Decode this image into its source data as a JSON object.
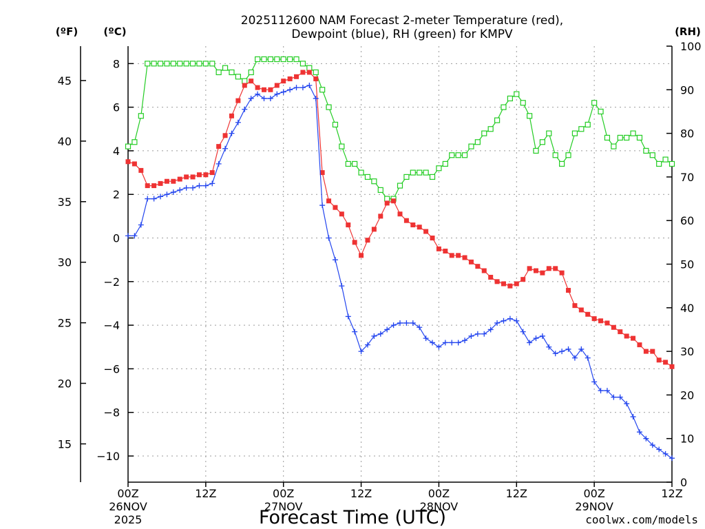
{
  "title_line1": "2025112600 NAM Forecast 2-meter Temperature (red),",
  "title_line2": "Dewpoint (blue), RH (green) for KMPV",
  "unit_f": "(ºF)",
  "unit_c": "(ºC)",
  "unit_rh": "(RH)",
  "xlabel": "Forecast Time (UTC)",
  "credit": "coolwx.com/models",
  "colors": {
    "temperature": "#ee3333",
    "dewpoint": "#2244ee",
    "rh": "#22cc22",
    "grid": "#999999",
    "credit": "#cc3333"
  },
  "chart_data": {
    "type": "line",
    "title": "2025112600 NAM Forecast 2-meter Temperature (red), Dewpoint (blue), RH (green) for KMPV",
    "xlabel": "Forecast Time (UTC)",
    "x_unit": "forecast hour from 2025-11-26 00Z",
    "xlim": [
      0,
      84
    ],
    "x_ticks": [
      {
        "x": 0,
        "l1": "00Z",
        "l2": "26NOV",
        "l3": "2025"
      },
      {
        "x": 12,
        "l1": "12Z",
        "l2": "",
        "l3": ""
      },
      {
        "x": 24,
        "l1": "00Z",
        "l2": "27NOV",
        "l3": ""
      },
      {
        "x": 36,
        "l1": "12Z",
        "l2": "",
        "l3": ""
      },
      {
        "x": 48,
        "l1": "00Z",
        "l2": "28NOV",
        "l3": ""
      },
      {
        "x": 60,
        "l1": "12Z",
        "l2": "",
        "l3": ""
      },
      {
        "x": 72,
        "l1": "00Z",
        "l2": "29NOV",
        "l3": ""
      },
      {
        "x": 84,
        "l1": "12Z",
        "l2": "",
        "l3": ""
      }
    ],
    "y_left_c": {
      "unit": "°C",
      "ticks": [
        -10,
        -8,
        -6,
        -4,
        -2,
        0,
        2,
        4,
        6,
        8
      ]
    },
    "y_left_f": {
      "unit": "°F",
      "ticks": [
        15,
        20,
        25,
        30,
        35,
        40,
        45
      ]
    },
    "y_right_rh": {
      "unit": "%",
      "ticks": [
        0,
        10,
        20,
        30,
        40,
        50,
        60,
        70,
        80,
        90,
        100
      ]
    },
    "ylim_c": [
      -11.2,
      8.8
    ],
    "grid": true,
    "series": [
      {
        "name": "Temperature (°C)",
        "axis": "c",
        "marker": "filled-square",
        "points": [
          [
            0,
            3.5
          ],
          [
            1,
            3.4
          ],
          [
            2,
            3.1
          ],
          [
            3,
            2.4
          ],
          [
            4,
            2.4
          ],
          [
            5,
            2.5
          ],
          [
            6,
            2.6
          ],
          [
            7,
            2.6
          ],
          [
            8,
            2.7
          ],
          [
            9,
            2.8
          ],
          [
            10,
            2.8
          ],
          [
            11,
            2.9
          ],
          [
            12,
            2.9
          ],
          [
            13,
            3.0
          ],
          [
            14,
            4.2
          ],
          [
            15,
            4.7
          ],
          [
            16,
            5.6
          ],
          [
            17,
            6.3
          ],
          [
            18,
            7.0
          ],
          [
            19,
            7.2
          ],
          [
            20,
            6.9
          ],
          [
            21,
            6.8
          ],
          [
            22,
            6.8
          ],
          [
            23,
            7.0
          ],
          [
            24,
            7.2
          ],
          [
            25,
            7.3
          ],
          [
            26,
            7.4
          ],
          [
            27,
            7.6
          ],
          [
            28,
            7.6
          ],
          [
            29,
            7.3
          ],
          [
            30,
            3.0
          ],
          [
            31,
            1.7
          ],
          [
            32,
            1.4
          ],
          [
            33,
            1.1
          ],
          [
            34,
            0.6
          ],
          [
            35,
            -0.2
          ],
          [
            36,
            -0.8
          ],
          [
            37,
            -0.1
          ],
          [
            38,
            0.4
          ],
          [
            39,
            1.0
          ],
          [
            40,
            1.6
          ],
          [
            41,
            1.7
          ],
          [
            42,
            1.1
          ],
          [
            43,
            0.8
          ],
          [
            44,
            0.6
          ],
          [
            45,
            0.5
          ],
          [
            46,
            0.3
          ],
          [
            47,
            0.0
          ],
          [
            48,
            -0.5
          ],
          [
            49,
            -0.6
          ],
          [
            50,
            -0.8
          ],
          [
            51,
            -0.8
          ],
          [
            52,
            -0.9
          ],
          [
            53,
            -1.1
          ],
          [
            54,
            -1.3
          ],
          [
            55,
            -1.5
          ],
          [
            56,
            -1.8
          ],
          [
            57,
            -2.0
          ],
          [
            58,
            -2.1
          ],
          [
            59,
            -2.2
          ],
          [
            60,
            -2.1
          ],
          [
            61,
            -1.9
          ],
          [
            62,
            -1.4
          ],
          [
            63,
            -1.5
          ],
          [
            64,
            -1.6
          ],
          [
            65,
            -1.4
          ],
          [
            66,
            -1.4
          ],
          [
            67,
            -1.6
          ],
          [
            68,
            -2.4
          ],
          [
            69,
            -3.1
          ],
          [
            70,
            -3.3
          ],
          [
            71,
            -3.5
          ],
          [
            72,
            -3.7
          ],
          [
            73,
            -3.8
          ],
          [
            74,
            -3.9
          ],
          [
            75,
            -4.1
          ],
          [
            76,
            -4.3
          ],
          [
            77,
            -4.5
          ],
          [
            78,
            -4.6
          ],
          [
            79,
            -4.9
          ],
          [
            80,
            -5.2
          ],
          [
            81,
            -5.2
          ],
          [
            82,
            -5.6
          ],
          [
            83,
            -5.7
          ],
          [
            84,
            -5.9
          ]
        ]
      },
      {
        "name": "Dewpoint (°C)",
        "axis": "c",
        "marker": "plus",
        "points": [
          [
            0,
            0.1
          ],
          [
            1,
            0.1
          ],
          [
            2,
            0.6
          ],
          [
            3,
            1.8
          ],
          [
            4,
            1.8
          ],
          [
            5,
            1.9
          ],
          [
            6,
            2.0
          ],
          [
            7,
            2.1
          ],
          [
            8,
            2.2
          ],
          [
            9,
            2.3
          ],
          [
            10,
            2.3
          ],
          [
            11,
            2.4
          ],
          [
            12,
            2.4
          ],
          [
            13,
            2.5
          ],
          [
            14,
            3.4
          ],
          [
            15,
            4.1
          ],
          [
            16,
            4.8
          ],
          [
            17,
            5.3
          ],
          [
            18,
            5.9
          ],
          [
            19,
            6.4
          ],
          [
            20,
            6.6
          ],
          [
            21,
            6.4
          ],
          [
            22,
            6.4
          ],
          [
            23,
            6.6
          ],
          [
            24,
            6.7
          ],
          [
            25,
            6.8
          ],
          [
            26,
            6.9
          ],
          [
            27,
            6.9
          ],
          [
            28,
            7.0
          ],
          [
            29,
            6.4
          ],
          [
            30,
            1.5
          ],
          [
            31,
            0.0
          ],
          [
            32,
            -1.0
          ],
          [
            33,
            -2.2
          ],
          [
            34,
            -3.6
          ],
          [
            35,
            -4.3
          ],
          [
            36,
            -5.2
          ],
          [
            37,
            -4.9
          ],
          [
            38,
            -4.5
          ],
          [
            39,
            -4.4
          ],
          [
            40,
            -4.2
          ],
          [
            41,
            -4.0
          ],
          [
            42,
            -3.9
          ],
          [
            43,
            -3.9
          ],
          [
            44,
            -3.9
          ],
          [
            45,
            -4.1
          ],
          [
            46,
            -4.6
          ],
          [
            47,
            -4.8
          ],
          [
            48,
            -5.0
          ],
          [
            49,
            -4.8
          ],
          [
            50,
            -4.8
          ],
          [
            51,
            -4.8
          ],
          [
            52,
            -4.7
          ],
          [
            53,
            -4.5
          ],
          [
            54,
            -4.4
          ],
          [
            55,
            -4.4
          ],
          [
            56,
            -4.2
          ],
          [
            57,
            -3.9
          ],
          [
            58,
            -3.8
          ],
          [
            59,
            -3.7
          ],
          [
            60,
            -3.8
          ],
          [
            61,
            -4.3
          ],
          [
            62,
            -4.8
          ],
          [
            63,
            -4.6
          ],
          [
            64,
            -4.5
          ],
          [
            65,
            -5.0
          ],
          [
            66,
            -5.3
          ],
          [
            67,
            -5.2
          ],
          [
            68,
            -5.1
          ],
          [
            69,
            -5.5
          ],
          [
            70,
            -5.1
          ],
          [
            71,
            -5.5
          ],
          [
            72,
            -6.6
          ],
          [
            73,
            -7.0
          ],
          [
            74,
            -7.0
          ],
          [
            75,
            -7.3
          ],
          [
            76,
            -7.3
          ],
          [
            77,
            -7.6
          ],
          [
            78,
            -8.2
          ],
          [
            79,
            -8.9
          ],
          [
            80,
            -9.2
          ],
          [
            81,
            -9.5
          ],
          [
            82,
            -9.7
          ],
          [
            83,
            -9.9
          ],
          [
            84,
            -10.1
          ]
        ]
      },
      {
        "name": "RH (%)",
        "axis": "rh",
        "marker": "open-square",
        "points": [
          [
            0,
            77
          ],
          [
            1,
            78
          ],
          [
            2,
            84
          ],
          [
            3,
            96
          ],
          [
            4,
            96
          ],
          [
            5,
            96
          ],
          [
            6,
            96
          ],
          [
            7,
            96
          ],
          [
            8,
            96
          ],
          [
            9,
            96
          ],
          [
            10,
            96
          ],
          [
            11,
            96
          ],
          [
            12,
            96
          ],
          [
            13,
            96
          ],
          [
            14,
            94
          ],
          [
            15,
            95
          ],
          [
            16,
            94
          ],
          [
            17,
            93
          ],
          [
            18,
            92
          ],
          [
            19,
            94
          ],
          [
            20,
            97
          ],
          [
            21,
            97
          ],
          [
            22,
            97
          ],
          [
            23,
            97
          ],
          [
            24,
            97
          ],
          [
            25,
            97
          ],
          [
            26,
            97
          ],
          [
            27,
            96
          ],
          [
            28,
            95
          ],
          [
            29,
            94
          ],
          [
            30,
            90
          ],
          [
            31,
            86
          ],
          [
            32,
            82
          ],
          [
            33,
            77
          ],
          [
            34,
            73
          ],
          [
            35,
            73
          ],
          [
            36,
            71
          ],
          [
            37,
            70
          ],
          [
            38,
            69
          ],
          [
            39,
            67
          ],
          [
            40,
            65
          ],
          [
            41,
            65
          ],
          [
            42,
            68
          ],
          [
            43,
            70
          ],
          [
            44,
            71
          ],
          [
            45,
            71
          ],
          [
            46,
            71
          ],
          [
            47,
            70
          ],
          [
            48,
            72
          ],
          [
            49,
            73
          ],
          [
            50,
            75
          ],
          [
            51,
            75
          ],
          [
            52,
            75
          ],
          [
            53,
            77
          ],
          [
            54,
            78
          ],
          [
            55,
            80
          ],
          [
            56,
            81
          ],
          [
            57,
            83
          ],
          [
            58,
            86
          ],
          [
            59,
            88
          ],
          [
            60,
            89
          ],
          [
            61,
            87
          ],
          [
            62,
            84
          ],
          [
            63,
            76
          ],
          [
            64,
            78
          ],
          [
            65,
            80
          ],
          [
            66,
            75
          ],
          [
            67,
            73
          ],
          [
            68,
            75
          ],
          [
            69,
            80
          ],
          [
            70,
            81
          ],
          [
            71,
            82
          ],
          [
            72,
            87
          ],
          [
            73,
            85
          ],
          [
            74,
            79
          ],
          [
            75,
            77
          ],
          [
            76,
            79
          ],
          [
            77,
            79
          ],
          [
            78,
            80
          ],
          [
            79,
            79
          ],
          [
            80,
            76
          ],
          [
            81,
            75
          ],
          [
            82,
            73
          ],
          [
            83,
            74
          ],
          [
            84,
            73
          ]
        ]
      }
    ]
  }
}
